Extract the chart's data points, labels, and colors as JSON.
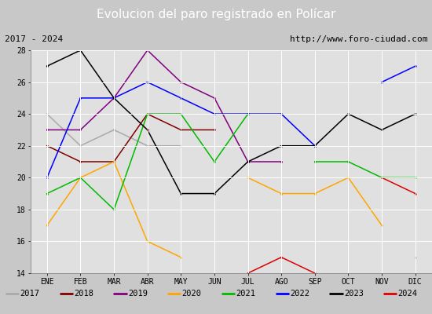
{
  "title": "Evolucion del paro registrado en Polícar",
  "subtitle_left": "2017 - 2024",
  "subtitle_right": "http://www.foro-ciudad.com",
  "months": [
    "ENE",
    "FEB",
    "MAR",
    "ABR",
    "MAY",
    "JUN",
    "JUL",
    "AGO",
    "SEP",
    "OCT",
    "NOV",
    "DIC"
  ],
  "ylim": [
    14,
    28
  ],
  "yticks": [
    14,
    16,
    18,
    20,
    22,
    24,
    26,
    28
  ],
  "series": {
    "2017": {
      "color": "#aaaaaa",
      "values": [
        24,
        22,
        23,
        22,
        22,
        null,
        null,
        19,
        null,
        null,
        null,
        15
      ]
    },
    "2018": {
      "color": "#800000",
      "values": [
        22,
        21,
        21,
        24,
        23,
        23,
        null,
        null,
        null,
        null,
        null,
        null
      ]
    },
    "2019": {
      "color": "#800080",
      "values": [
        23,
        23,
        25,
        28,
        26,
        25,
        21,
        21,
        null,
        null,
        null,
        null
      ]
    },
    "2020": {
      "color": "#ffa500",
      "values": [
        17,
        20,
        21,
        16,
        15,
        null,
        20,
        19,
        19,
        20,
        17,
        null
      ]
    },
    "2021": {
      "color": "#00bb00",
      "values": [
        19,
        20,
        18,
        24,
        24,
        21,
        24,
        null,
        21,
        21,
        20,
        20
      ]
    },
    "2022": {
      "color": "#0000ff",
      "values": [
        20,
        25,
        25,
        26,
        25,
        24,
        24,
        24,
        22,
        null,
        26,
        27
      ]
    },
    "2023": {
      "color": "#000000",
      "values": [
        27,
        28,
        25,
        23,
        19,
        19,
        21,
        22,
        22,
        24,
        23,
        24
      ]
    },
    "2024": {
      "color": "#dd0000",
      "values": [
        null,
        null,
        null,
        23,
        null,
        null,
        14,
        15,
        14,
        null,
        20,
        19
      ]
    }
  },
  "title_bg": "#4472c4",
  "subtitle_bg": "#cccccc",
  "plot_bg": "#e0e0e0",
  "fig_bg": "#c8c8c8",
  "legend_bg": "#e8e8e8",
  "title_fontsize": 11,
  "subtitle_fontsize": 8,
  "tick_fontsize": 7,
  "legend_fontsize": 7.5
}
